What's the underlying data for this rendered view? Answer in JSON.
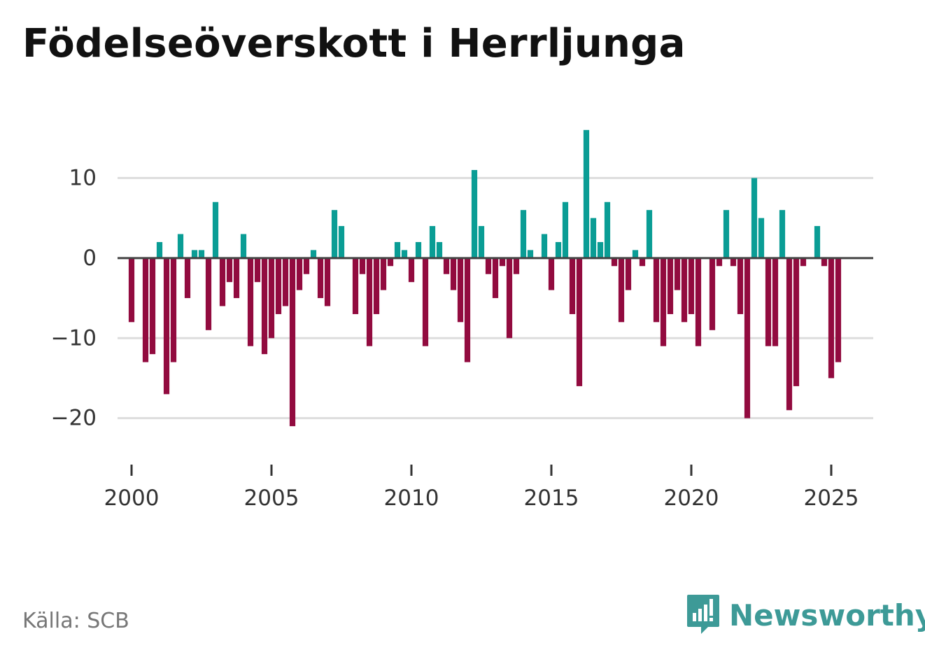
{
  "title": "Födelseöverskott i Herrljunga",
  "source": "Källa: SCB",
  "brand": "Newsworthy",
  "colors": {
    "positive": "#0a9d95",
    "negative": "#920b3f",
    "grid": "#dddddd",
    "zero_line": "#444444",
    "brand": "#3d9a97"
  },
  "chart_data": {
    "type": "bar",
    "title": "Födelseöverskott i Herrljunga",
    "xlabel": "",
    "ylabel": "",
    "xlim": [
      1999.5,
      2026.5
    ],
    "ylim": [
      -23,
      20
    ],
    "x_ticks": [
      2000,
      2005,
      2010,
      2015,
      2020,
      2025
    ],
    "y_ticks": [
      -20,
      -10,
      0,
      10
    ],
    "y_tick_labels": [
      "−20",
      "−10",
      "0",
      "10"
    ],
    "grid": true,
    "start_year": 2000,
    "frequency": "quarterly",
    "series": [
      {
        "name": "Födelseöverskott",
        "values": [
          -8,
          0,
          -13,
          -12,
          2,
          -17,
          -13,
          3,
          -5,
          1,
          1,
          -9,
          7,
          -6,
          -3,
          -5,
          3,
          -11,
          -3,
          -12,
          -10,
          -7,
          -6,
          -21,
          -4,
          -2,
          1,
          -5,
          -6,
          6,
          4,
          0,
          -7,
          -2,
          -11,
          -7,
          -4,
          -1,
          2,
          1,
          -3,
          2,
          -11,
          4,
          2,
          -2,
          -4,
          -8,
          -13,
          11,
          4,
          -2,
          -5,
          -1,
          -10,
          -2,
          6,
          1,
          0,
          3,
          -4,
          2,
          7,
          -7,
          -16,
          16,
          5,
          2,
          7,
          -1,
          -8,
          -4,
          1,
          -1,
          6,
          -8,
          -11,
          -7,
          -4,
          -8,
          -7,
          -11,
          0,
          -9,
          -1,
          6,
          -1,
          -7,
          -20,
          10,
          5,
          -11,
          -11,
          6,
          -19,
          -16,
          -1,
          0,
          4,
          -1,
          -15,
          -13
        ]
      }
    ]
  }
}
